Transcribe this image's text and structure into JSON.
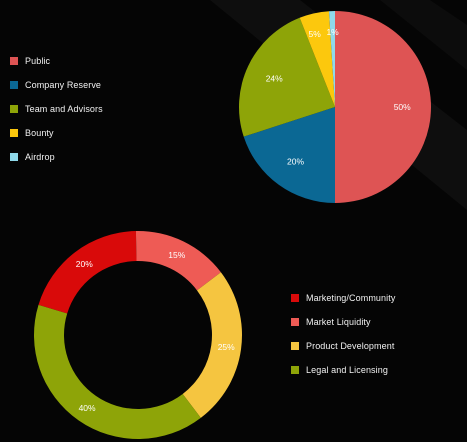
{
  "chart_data": [
    {
      "type": "pie",
      "categories": [
        "Public",
        "Company Reserve",
        "Team and Advisors",
        "Bounty",
        "Airdrop"
      ],
      "values": [
        50,
        20,
        24,
        5,
        1
      ],
      "data_labels": [
        "50%",
        "20%",
        "24%",
        "5%",
        "1%"
      ],
      "colors": [
        "#DE5454",
        "#0B6894",
        "#8EA408",
        "#FCC80D",
        "#8FD9EA"
      ],
      "legend_position": "left",
      "legend": [
        {
          "label": "Public",
          "color": "#DE5454"
        },
        {
          "label": "Company Reserve",
          "color": "#0B6894"
        },
        {
          "label": "Team and Advisors",
          "color": "#8EA408"
        },
        {
          "label": "Bounty",
          "color": "#FCC80D"
        },
        {
          "label": "Airdrop",
          "color": "#8FD9EA"
        }
      ]
    },
    {
      "type": "pie",
      "style": "donut",
      "categories": [
        "Marketing/Community",
        "Market Liquidity",
        "Product Development",
        "Legal and Licensing"
      ],
      "values": [
        20,
        15,
        25,
        40
      ],
      "data_labels": [
        "20%",
        "15%",
        "25%",
        "40%"
      ],
      "colors": [
        "#D90A0A",
        "#EE5B55",
        "#F5C540",
        "#8EA408"
      ],
      "legend_position": "right",
      "legend": [
        {
          "label": "Marketing/Community",
          "color": "#D90A0A"
        },
        {
          "label": "Market Liquidity",
          "color": "#EE5B55"
        },
        {
          "label": "Product Development",
          "color": "#F5C540"
        },
        {
          "label": "Legal and Licensing",
          "color": "#8EA408"
        }
      ]
    }
  ]
}
